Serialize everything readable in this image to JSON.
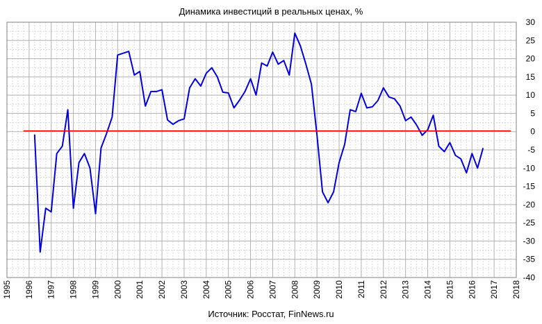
{
  "chart_data": {
    "type": "line",
    "title": "Динамика  инвестиций  в реальных  ценах, %",
    "source_note": "Источник: Росстат, FinNews.ru",
    "xlabel": "",
    "ylabel": "",
    "xlim": [
      1995,
      2018
    ],
    "ylim": [
      -40,
      30
    ],
    "x_ticks": [
      "1995",
      "1996",
      "1997",
      "1998",
      "1999",
      "2000",
      "2001",
      "2002",
      "2003",
      "2004",
      "2005",
      "2006",
      "2007",
      "2008",
      "2009",
      "2010",
      "2011",
      "2012",
      "2013",
      "2014",
      "2015",
      "2016",
      "2017",
      "2018"
    ],
    "y_ticks": [
      30,
      25,
      20,
      15,
      10,
      5,
      0,
      -5,
      -10,
      -15,
      -20,
      -25,
      -30,
      -35,
      -40
    ],
    "y_axis_side": "right",
    "grid": true,
    "series": [
      {
        "color": "#0000dd",
        "x": [
          1996.25,
          1996.5,
          1996.75,
          1997.0,
          1997.25,
          1997.5,
          1997.75,
          1998.0,
          1998.25,
          1998.5,
          1998.75,
          1999.0,
          1999.25,
          1999.5,
          1999.75,
          2000.0,
          2000.25,
          2000.5,
          2000.75,
          2001.0,
          2001.25,
          2001.5,
          2001.75,
          2002.0,
          2002.25,
          2002.5,
          2002.75,
          2003.0,
          2003.25,
          2003.5,
          2003.75,
          2004.0,
          2004.25,
          2004.5,
          2004.75,
          2005.0,
          2005.25,
          2005.5,
          2005.75,
          2006.0,
          2006.25,
          2006.5,
          2006.75,
          2007.0,
          2007.25,
          2007.5,
          2007.75,
          2008.0,
          2008.25,
          2008.5,
          2008.75,
          2009.0,
          2009.25,
          2009.5,
          2009.75,
          2010.0,
          2010.25,
          2010.5,
          2010.75,
          2011.0,
          2011.25,
          2011.5,
          2011.75,
          2012.0,
          2012.25,
          2012.5,
          2012.75,
          2013.0,
          2013.25,
          2013.5,
          2013.75,
          2014.0,
          2014.25,
          2014.5,
          2014.75,
          2015.0,
          2015.25,
          2015.5,
          2015.75,
          2016.0,
          2016.25,
          2016.5
        ],
        "y": [
          -0.8,
          -33,
          -21,
          -22,
          -6,
          -4,
          6,
          -21,
          -8.5,
          -6,
          -10,
          -22.5,
          -4.5,
          -0.5,
          4,
          21,
          21.5,
          22,
          15.5,
          16.5,
          7,
          11,
          11,
          11.5,
          3.2,
          2,
          3,
          3.5,
          12,
          14.5,
          12.5,
          16,
          17.5,
          15,
          10.8,
          10.6,
          6.5,
          8.6,
          11,
          14.5,
          10,
          18.8,
          18,
          21.8,
          18.5,
          19.5,
          15.5,
          27,
          23.5,
          18.5,
          13,
          -1,
          -16.5,
          -19.5,
          -16.5,
          -8.5,
          -3.5,
          6,
          5.5,
          10.5,
          6.5,
          6.8,
          8.5,
          12,
          9.5,
          9,
          7,
          3,
          4,
          1.8,
          -1,
          0.5,
          4.5,
          -4,
          -5.5,
          -3,
          -6.5,
          -7.5,
          -11.3,
          -6,
          -10,
          -4.5
        ]
      },
      {
        "color": "#ff0000",
        "x": [
          1995.75,
          2017.75
        ],
        "y": [
          0.2,
          0.2
        ]
      }
    ]
  }
}
